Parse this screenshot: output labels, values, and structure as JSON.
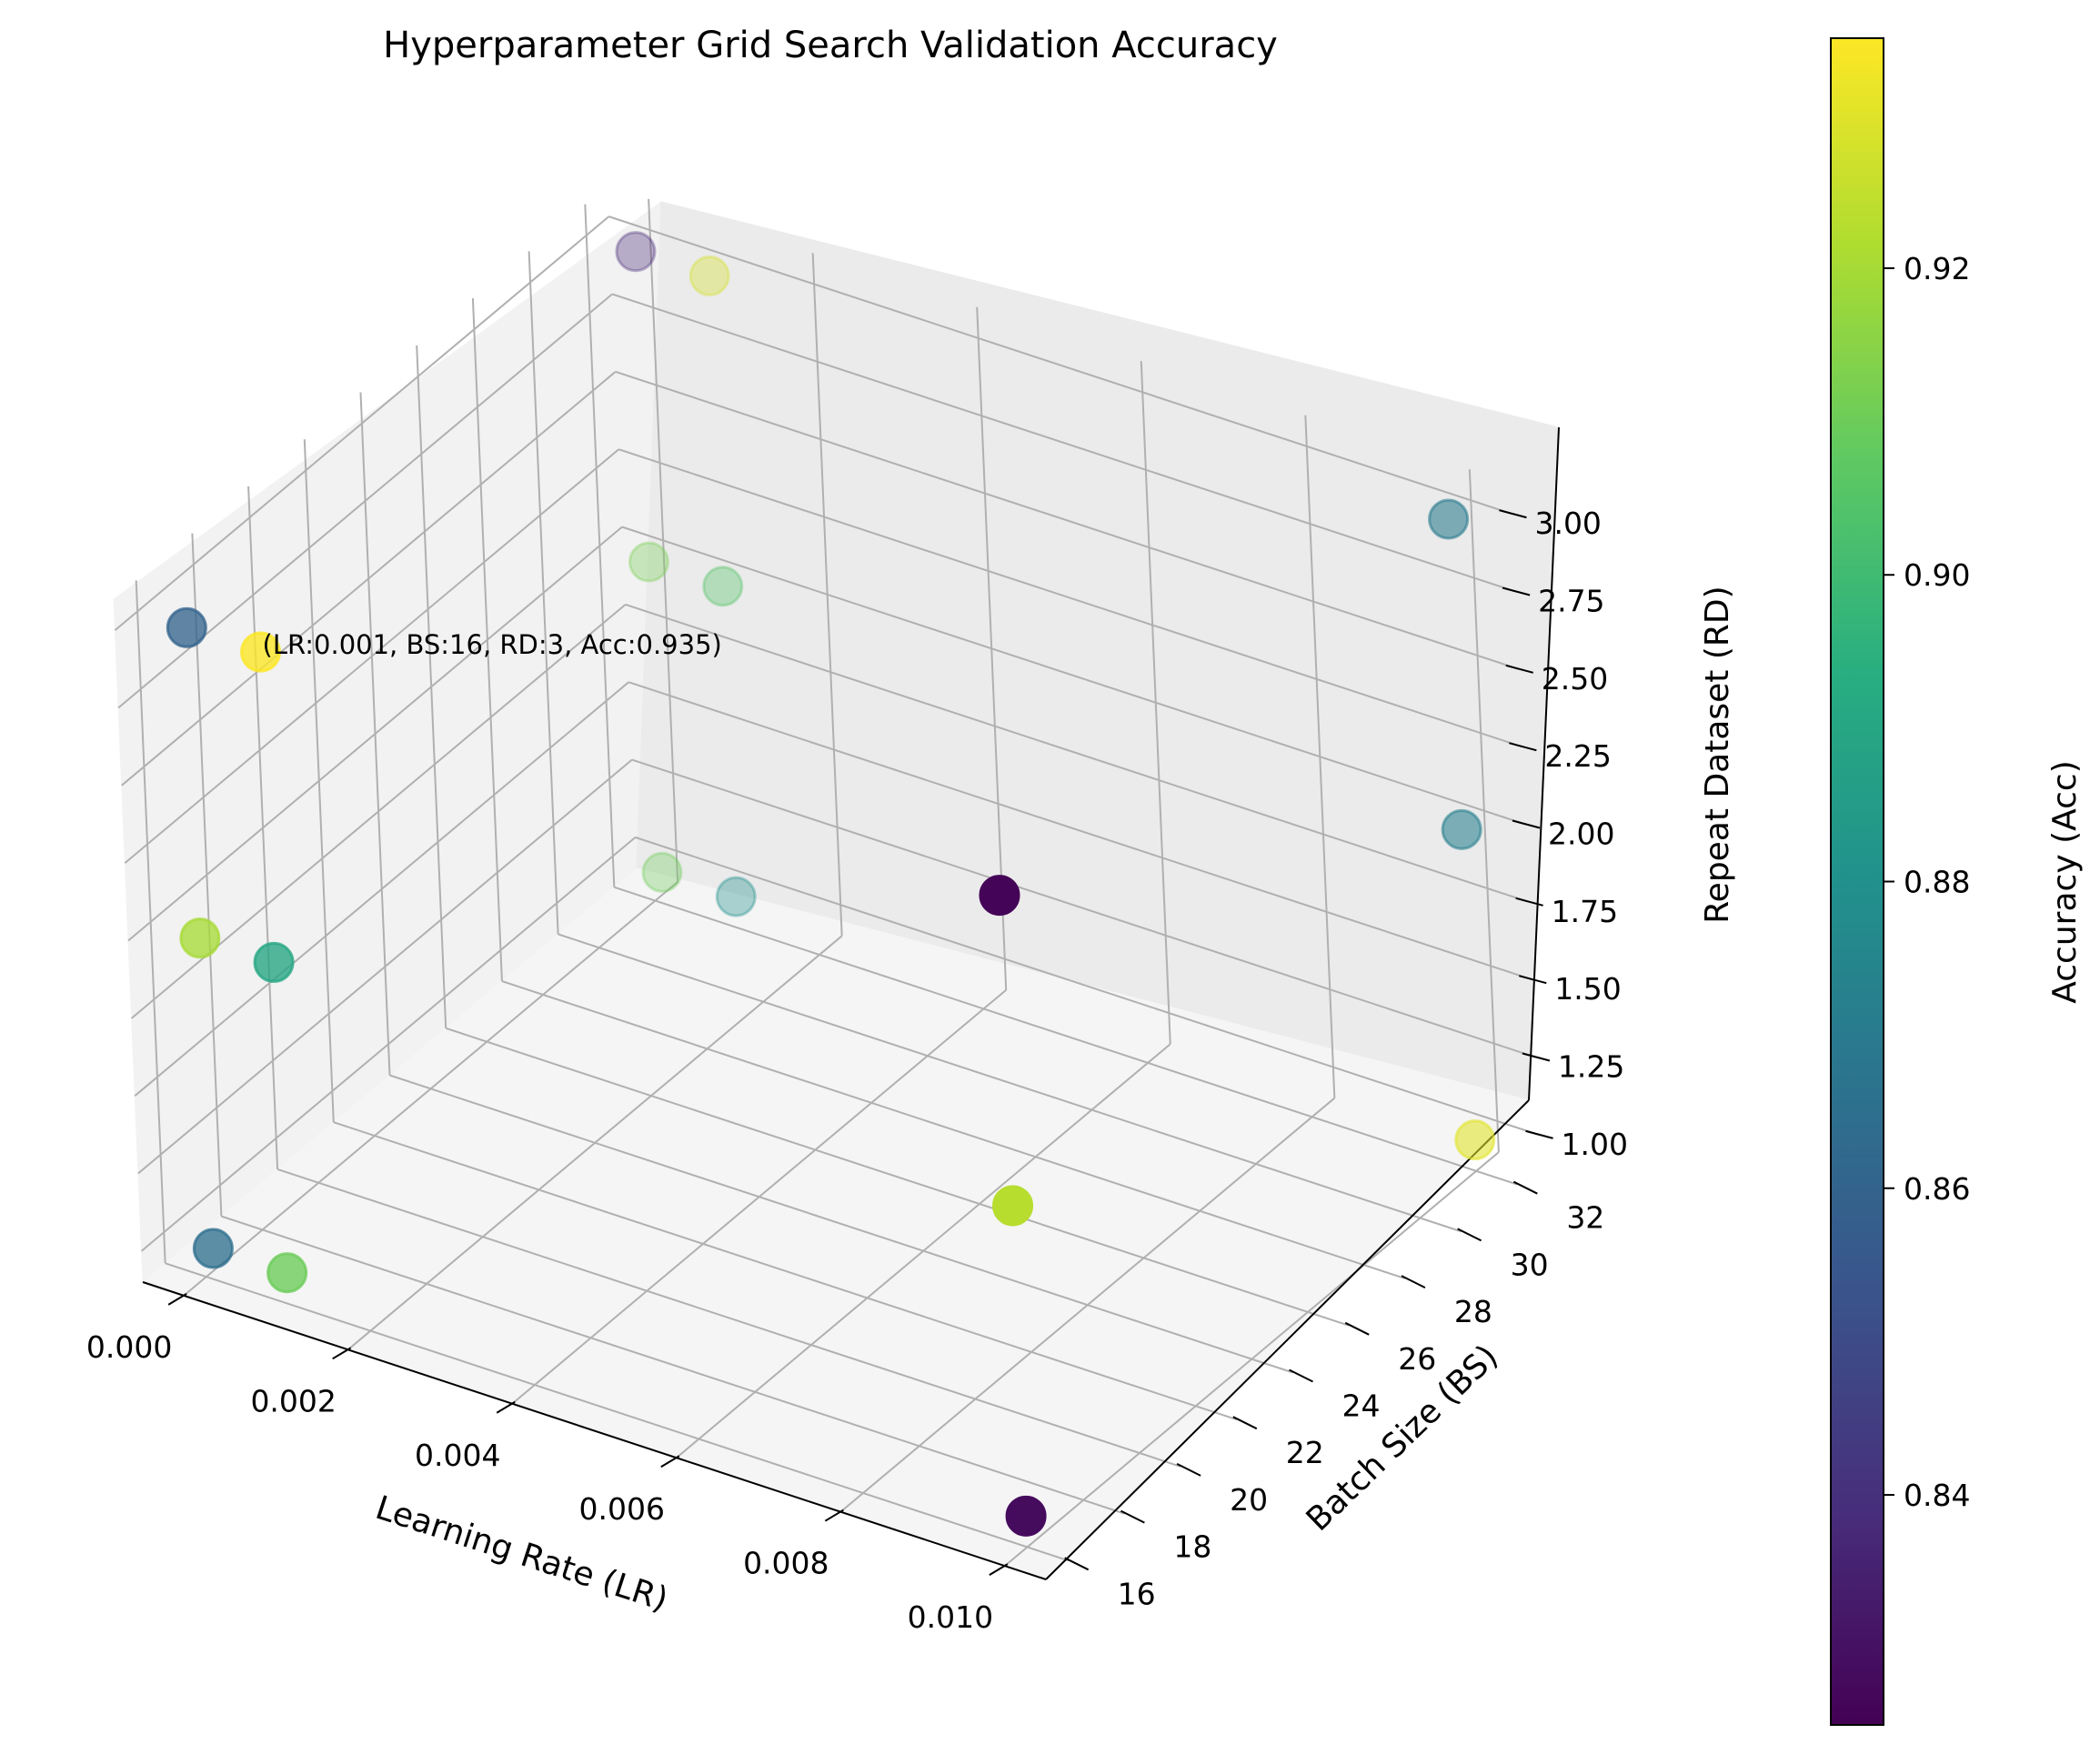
{
  "chart_data": {
    "type": "scatter",
    "title": "Hyperparameter Grid Search Validation Accuracy",
    "xlabel": "Learning Rate (LR)",
    "ylabel": "Batch Size (BS)",
    "zlabel": "Repeat Dataset (RD)",
    "colorbar_label": "Accuracy (Acc)",
    "colormap": "viridis",
    "xlim": [
      -0.0005,
      0.0105
    ],
    "ylim": [
      15.2,
      32.8
    ],
    "zlim": [
      0.9,
      3.1
    ],
    "clim": [
      0.825,
      0.935
    ],
    "x_ticks": [
      "0.000",
      "0.002",
      "0.004",
      "0.006",
      "0.008",
      "0.010"
    ],
    "y_ticks": [
      "16",
      "18",
      "20",
      "22",
      "24",
      "26",
      "28",
      "30",
      "32"
    ],
    "z_ticks": [
      "1.00",
      "1.25",
      "1.50",
      "1.75",
      "2.00",
      "2.25",
      "2.50",
      "2.75",
      "3.00"
    ],
    "colorbar_ticks": [
      "0.84",
      "0.86",
      "0.88",
      "0.90",
      "0.92"
    ],
    "annotation": "(LR:0.001, BS:16, RD:3, Acc:0.935)",
    "points": [
      {
        "lr": 0.0001,
        "bs": 16,
        "rd": 3,
        "acc": 0.86
      },
      {
        "lr": 0.001,
        "bs": 16,
        "rd": 3,
        "acc": 0.935
      },
      {
        "lr": 0.0001,
        "bs": 16,
        "rd": 2,
        "acc": 0.92
      },
      {
        "lr": 0.001,
        "bs": 16,
        "rd": 2,
        "acc": 0.89
      },
      {
        "lr": 0.0001,
        "bs": 16,
        "rd": 1,
        "acc": 0.865
      },
      {
        "lr": 0.001,
        "bs": 16,
        "rd": 1,
        "acc": 0.91
      },
      {
        "lr": 0.0001,
        "bs": 32,
        "rd": 3,
        "acc": 0.838
      },
      {
        "lr": 0.001,
        "bs": 32,
        "rd": 3,
        "acc": 0.928
      },
      {
        "lr": 0.0001,
        "bs": 32,
        "rd": 2,
        "acc": 0.912
      },
      {
        "lr": 0.001,
        "bs": 32,
        "rd": 2,
        "acc": 0.905
      },
      {
        "lr": 0.0001,
        "bs": 32,
        "rd": 1,
        "acc": 0.91
      },
      {
        "lr": 0.001,
        "bs": 32,
        "rd": 1,
        "acc": 0.88
      },
      {
        "lr": 0.01,
        "bs": 16,
        "rd": 3,
        "acc": 0.826
      },
      {
        "lr": 0.01,
        "bs": 16,
        "rd": 2,
        "acc": 0.923
      },
      {
        "lr": 0.01,
        "bs": 16,
        "rd": 1,
        "acc": 0.828
      },
      {
        "lr": 0.01,
        "bs": 32,
        "rd": 3,
        "acc": 0.87
      },
      {
        "lr": 0.01,
        "bs": 32,
        "rd": 2,
        "acc": 0.872
      },
      {
        "lr": 0.01,
        "bs": 32,
        "rd": 1,
        "acc": 0.93
      }
    ]
  }
}
